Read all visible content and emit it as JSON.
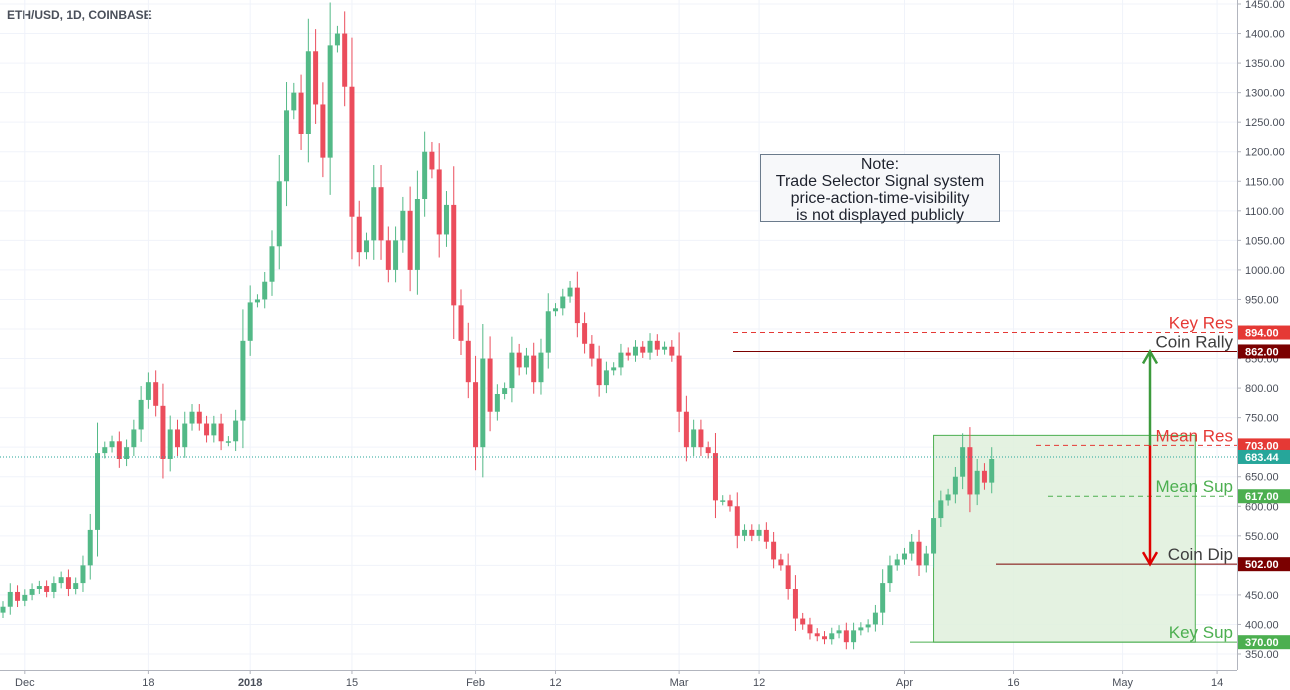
{
  "symbol": "ETH/USD, 1D, COINBASE",
  "note": {
    "lines": [
      "Note:",
      "Trade Selector Signal system",
      "price-action-time-visibility",
      "is not displayed publicly"
    ]
  },
  "colors": {
    "up": "#53b987",
    "down": "#eb4d5c",
    "resistance": "#e53935",
    "support": "#4caf50",
    "dark_red": "#7b0000",
    "zone_fill": "#dff0dc",
    "last_price": "#26a69a"
  },
  "chart_data": {
    "type": "candlestick",
    "title": "ETH/USD, 1D, COINBASE",
    "y_axis": {
      "range": [
        334,
        1450
      ],
      "ticks": [
        350,
        400,
        450,
        500,
        550,
        600,
        650,
        700,
        750,
        800,
        850,
        900,
        950,
        1000,
        1050,
        1100,
        1150,
        1200,
        1250,
        1300,
        1350,
        1400,
        1450
      ],
      "labels": [
        "350.00",
        "400.00",
        "450.00",
        "500.00",
        "550.00",
        "600.00",
        "650.00",
        "700.00",
        "750.00",
        "800.00",
        "850.00",
        "900.00",
        "950.00",
        "1000.00",
        "1050.00",
        "1100.00",
        "1150.00",
        "1200.00",
        "1250.00",
        "1300.00",
        "1350.00",
        "1400.00",
        "1450.00"
      ]
    },
    "x_axis": {
      "ticks": [
        {
          "label": "Dec",
          "date": "2017-12-01",
          "bold": false
        },
        {
          "label": "18",
          "date": "2017-12-18",
          "bold": false
        },
        {
          "label": "2018",
          "date": "2018-01-01",
          "bold": true
        },
        {
          "label": "15",
          "date": "2018-01-15",
          "bold": false
        },
        {
          "label": "Feb",
          "date": "2018-02-01",
          "bold": false
        },
        {
          "label": "12",
          "date": "2018-02-12",
          "bold": false
        },
        {
          "label": "Mar",
          "date": "2018-03-01",
          "bold": false
        },
        {
          "label": "12",
          "date": "2018-03-12",
          "bold": false
        },
        {
          "label": "Apr",
          "date": "2018-04-01",
          "bold": false
        },
        {
          "label": "16",
          "date": "2018-04-16",
          "bold": false
        },
        {
          "label": "May",
          "date": "2018-05-01",
          "bold": false
        },
        {
          "label": "14",
          "date": "2018-05-14",
          "bold": false
        }
      ]
    },
    "first_date": "2017-11-28",
    "last_price": {
      "value": 683.44,
      "label": "683.44"
    },
    "closes": [
      430,
      455,
      440,
      450,
      460,
      465,
      455,
      470,
      480,
      460,
      470,
      500,
      560,
      690,
      700,
      710,
      680,
      700,
      730,
      780,
      810,
      770,
      680,
      730,
      700,
      740,
      760,
      740,
      720,
      740,
      710,
      710,
      745,
      880,
      945,
      950,
      980,
      1040,
      1150,
      1270,
      1300,
      1230,
      1370,
      1280,
      1190,
      1380,
      1400,
      1310,
      1090,
      1030,
      1050,
      1140,
      1050,
      1000,
      1050,
      1100,
      1000,
      1120,
      1200,
      1170,
      1060,
      1110,
      940,
      880,
      810,
      700,
      850,
      760,
      790,
      800,
      860,
      835,
      855,
      810,
      860,
      930,
      935,
      955,
      970,
      910,
      875,
      850,
      805,
      830,
      835,
      860,
      855,
      870,
      860,
      880,
      865,
      870,
      855,
      760,
      700,
      730,
      700,
      690,
      610,
      610,
      600,
      550,
      560,
      550,
      560,
      540,
      510,
      500,
      460,
      410,
      400,
      385,
      380,
      375,
      385,
      390,
      370,
      390,
      395,
      400,
      420,
      470,
      500,
      510,
      520,
      540,
      500,
      520,
      580,
      610,
      620,
      650,
      700,
      620,
      660,
      640,
      680
    ],
    "levels": [
      {
        "name": "Key Res",
        "value": 894,
        "label": "894.00",
        "kind": "resistance",
        "style": "dashed"
      },
      {
        "name": "Coin Rally",
        "value": 862,
        "label": "862.00",
        "kind": "rally",
        "style": "solid"
      },
      {
        "name": "Mean Res",
        "value": 703,
        "label": "703.00",
        "kind": "resistance",
        "style": "dashed"
      },
      {
        "name": "Mean Sup",
        "value": 617,
        "label": "617.00",
        "kind": "support",
        "style": "dashed"
      },
      {
        "name": "Coin Dip",
        "value": 502,
        "label": "502.00",
        "kind": "dip",
        "style": "solid"
      },
      {
        "name": "Key Sup",
        "value": 370,
        "label": "370.00",
        "kind": "support",
        "style": "solid"
      }
    ],
    "range_zone": {
      "top": 720,
      "bottom": 370,
      "from_date": "2018-04-05",
      "to_date": "2018-05-11"
    },
    "arrows": [
      {
        "from": 703,
        "to": 862,
        "direction": "up",
        "color": "#3c9a3c"
      },
      {
        "from": 703,
        "to": 502,
        "direction": "down",
        "color": "#e00000"
      }
    ]
  }
}
